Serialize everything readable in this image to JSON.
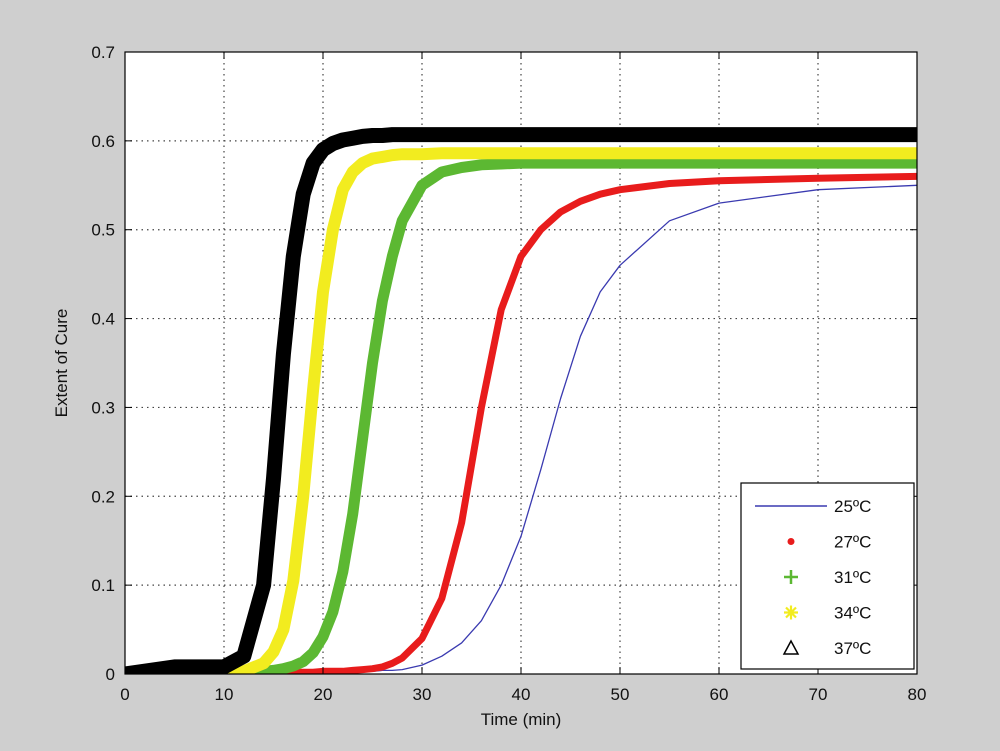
{
  "chart_data": {
    "type": "line",
    "title": "",
    "xlabel": "Time (min)",
    "ylabel": "Extent of Cure",
    "xlim": [
      0,
      80
    ],
    "ylim": [
      0,
      0.7
    ],
    "xticks": [
      0,
      10,
      20,
      30,
      40,
      50,
      60,
      70,
      80
    ],
    "yticks": [
      0,
      0.1,
      0.2,
      0.3,
      0.4,
      0.5,
      0.6,
      0.7
    ],
    "xtick_labels": [
      "0",
      "10",
      "20",
      "30",
      "40",
      "50",
      "60",
      "70",
      "80"
    ],
    "ytick_labels": [
      "0",
      "0.1",
      "0.2",
      "0.3",
      "0.4",
      "0.5",
      "0.6",
      "0.7"
    ],
    "grid": true,
    "legend_position": "bottom-right",
    "x": [
      0,
      5,
      10,
      12,
      14,
      15,
      16,
      17,
      18,
      19,
      20,
      21,
      22,
      23,
      24,
      25,
      26,
      27,
      28,
      30,
      32,
      34,
      36,
      38,
      40,
      42,
      44,
      46,
      48,
      50,
      55,
      60,
      70,
      80
    ],
    "series": [
      {
        "name": "25ºC",
        "color": "#3a3ab0",
        "marker": "line",
        "values": [
          0,
          0,
          0,
          0,
          0,
          0,
          0,
          0.001,
          0.001,
          0.002,
          0.002,
          0.002,
          0.002,
          0.002,
          0.003,
          0.003,
          0.004,
          0.004,
          0.005,
          0.01,
          0.02,
          0.035,
          0.06,
          0.1,
          0.155,
          0.23,
          0.31,
          0.38,
          0.43,
          0.46,
          0.51,
          0.53,
          0.545,
          0.55
        ]
      },
      {
        "name": "27ºC",
        "color": "#e81c1c",
        "marker": "dot",
        "values": [
          0,
          0,
          0.001,
          0.001,
          0.001,
          0.002,
          0.002,
          0.002,
          0.002,
          0.002,
          0.003,
          0.003,
          0.003,
          0.004,
          0.005,
          0.006,
          0.008,
          0.012,
          0.018,
          0.04,
          0.085,
          0.17,
          0.3,
          0.41,
          0.47,
          0.5,
          0.52,
          0.532,
          0.54,
          0.545,
          0.552,
          0.555,
          0.558,
          0.56
        ]
      },
      {
        "name": "31ºC",
        "color": "#5cb832",
        "marker": "plus",
        "values": [
          0,
          0,
          0,
          0.002,
          0.003,
          0.004,
          0.006,
          0.009,
          0.014,
          0.024,
          0.042,
          0.07,
          0.115,
          0.18,
          0.265,
          0.35,
          0.42,
          0.47,
          0.51,
          0.55,
          0.565,
          0.57,
          0.573,
          0.574,
          0.575,
          0.575,
          0.575,
          0.575,
          0.575,
          0.575,
          0.575,
          0.575,
          0.575,
          0.575
        ]
      },
      {
        "name": "34ºC",
        "color": "#f2ec1f",
        "marker": "star",
        "values": [
          0,
          0,
          0,
          0.003,
          0.012,
          0.025,
          0.05,
          0.105,
          0.2,
          0.32,
          0.43,
          0.5,
          0.545,
          0.565,
          0.575,
          0.58,
          0.582,
          0.584,
          0.585,
          0.585,
          0.586,
          0.586,
          0.586,
          0.586,
          0.586,
          0.586,
          0.586,
          0.586,
          0.586,
          0.586,
          0.586,
          0.586,
          0.586,
          0.586
        ]
      },
      {
        "name": "37ºC",
        "color": "#000000",
        "marker": "triangle",
        "values": [
          0,
          0.008,
          0.008,
          0.02,
          0.1,
          0.22,
          0.36,
          0.47,
          0.54,
          0.575,
          0.59,
          0.597,
          0.601,
          0.603,
          0.605,
          0.606,
          0.606,
          0.607,
          0.607,
          0.607,
          0.607,
          0.607,
          0.607,
          0.607,
          0.607,
          0.607,
          0.607,
          0.607,
          0.607,
          0.607,
          0.607,
          0.607,
          0.607,
          0.607
        ]
      }
    ]
  }
}
